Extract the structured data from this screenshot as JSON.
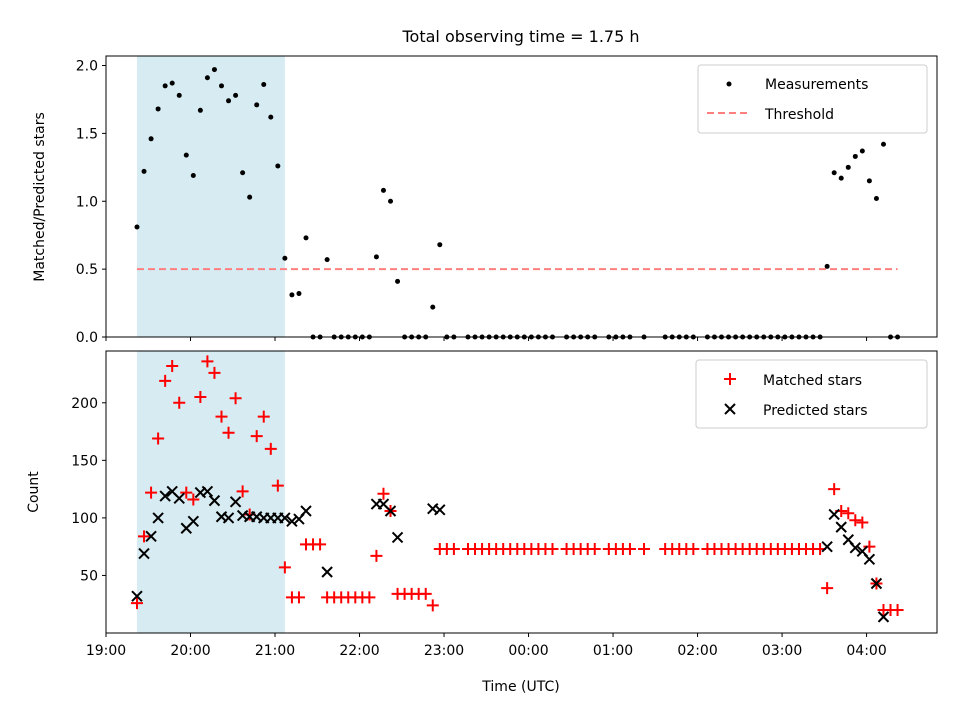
{
  "figure": {
    "title": "Total observing time = 1.75 h"
  },
  "chart_data": [
    {
      "type": "scatter",
      "panel": "top",
      "title": "Total observing time = 1.75 h",
      "xlabel": "",
      "ylabel": "Matched/Predicted stars",
      "xlim": [
        "19:00",
        "04:50"
      ],
      "ylim": [
        0,
        2.07
      ],
      "yticks": [
        "0.0",
        "0.5",
        "1.0",
        "1.5",
        "2.0"
      ],
      "legend_position": "upper-right",
      "shaded_interval": {
        "start": "19:22",
        "end": "21:07",
        "color": "#add8e6"
      },
      "series": [
        {
          "name": "Measurements",
          "marker": "dot",
          "color": "#000000",
          "points": [
            [
              "19:22",
              0.81
            ],
            [
              "19:27",
              1.22
            ],
            [
              "19:32",
              1.46
            ],
            [
              "19:37",
              1.68
            ],
            [
              "19:42",
              1.85
            ],
            [
              "19:47",
              1.87
            ],
            [
              "19:52",
              1.78
            ],
            [
              "19:57",
              1.34
            ],
            [
              "20:02",
              1.19
            ],
            [
              "20:07",
              1.67
            ],
            [
              "20:12",
              1.91
            ],
            [
              "20:17",
              1.97
            ],
            [
              "20:22",
              1.85
            ],
            [
              "20:27",
              1.74
            ],
            [
              "20:32",
              1.78
            ],
            [
              "20:37",
              1.21
            ],
            [
              "20:42",
              1.03
            ],
            [
              "20:47",
              1.71
            ],
            [
              "20:52",
              1.86
            ],
            [
              "20:57",
              1.62
            ],
            [
              "21:02",
              1.26
            ],
            [
              "21:07",
              0.58
            ],
            [
              "21:12",
              0.31
            ],
            [
              "21:17",
              0.32
            ],
            [
              "21:22",
              0.73
            ],
            [
              "21:27",
              0
            ],
            [
              "21:32",
              0
            ],
            [
              "21:37",
              0.57
            ],
            [
              "21:42",
              0
            ],
            [
              "21:47",
              0
            ],
            [
              "21:52",
              0
            ],
            [
              "21:57",
              0
            ],
            [
              "22:02",
              0
            ],
            [
              "22:07",
              0
            ],
            [
              "22:12",
              0.59
            ],
            [
              "22:17",
              1.08
            ],
            [
              "22:22",
              1.0
            ],
            [
              "22:27",
              0.41
            ],
            [
              "22:32",
              0
            ],
            [
              "22:37",
              0
            ],
            [
              "22:42",
              0
            ],
            [
              "22:47",
              0
            ],
            [
              "22:52",
              0.22
            ],
            [
              "22:57",
              0.68
            ],
            [
              "23:02",
              0
            ],
            [
              "23:07",
              0
            ],
            [
              "23:17",
              0
            ],
            [
              "23:22",
              0
            ],
            [
              "23:27",
              0
            ],
            [
              "23:32",
              0
            ],
            [
              "23:37",
              0
            ],
            [
              "23:42",
              0
            ],
            [
              "23:47",
              0
            ],
            [
              "23:52",
              0
            ],
            [
              "23:57",
              0
            ],
            [
              "00:02",
              0
            ],
            [
              "00:07",
              0
            ],
            [
              "00:12",
              0
            ],
            [
              "00:17",
              0
            ],
            [
              "00:27",
              0
            ],
            [
              "00:32",
              0
            ],
            [
              "00:37",
              0
            ],
            [
              "00:42",
              0
            ],
            [
              "00:47",
              0
            ],
            [
              "00:57",
              0
            ],
            [
              "01:02",
              0
            ],
            [
              "01:07",
              0
            ],
            [
              "01:12",
              0
            ],
            [
              "01:22",
              0
            ],
            [
              "01:37",
              0
            ],
            [
              "01:42",
              0
            ],
            [
              "01:47",
              0
            ],
            [
              "01:52",
              0
            ],
            [
              "01:57",
              0
            ],
            [
              "02:07",
              0
            ],
            [
              "02:12",
              0
            ],
            [
              "02:17",
              0
            ],
            [
              "02:22",
              0
            ],
            [
              "02:27",
              0
            ],
            [
              "02:32",
              0
            ],
            [
              "02:37",
              0
            ],
            [
              "02:42",
              0
            ],
            [
              "02:47",
              0
            ],
            [
              "02:52",
              0
            ],
            [
              "02:57",
              0
            ],
            [
              "03:02",
              0
            ],
            [
              "03:07",
              0
            ],
            [
              "03:12",
              0
            ],
            [
              "03:17",
              0
            ],
            [
              "03:22",
              0
            ],
            [
              "03:27",
              0
            ],
            [
              "03:32",
              0.52
            ],
            [
              "03:37",
              1.21
            ],
            [
              "03:42",
              1.17
            ],
            [
              "03:47",
              1.25
            ],
            [
              "03:52",
              1.33
            ],
            [
              "03:57",
              1.37
            ],
            [
              "04:02",
              1.15
            ],
            [
              "04:07",
              1.02
            ],
            [
              "04:12",
              1.42
            ],
            [
              "04:17",
              0
            ],
            [
              "04:22",
              0
            ]
          ]
        },
        {
          "name": "Threshold",
          "marker": "dashed-line",
          "color": "#ff7f7f",
          "x": [
            "19:22",
            "04:22"
          ],
          "y": [
            0.5,
            0.5
          ]
        }
      ]
    },
    {
      "type": "scatter",
      "panel": "bottom",
      "xlabel": "Time (UTC)",
      "ylabel": "Count",
      "xlim": [
        "19:00",
        "04:50"
      ],
      "ylim": [
        0,
        245
      ],
      "yticks": [
        "50",
        "100",
        "150",
        "200"
      ],
      "xticks": [
        "19:00",
        "20:00",
        "21:00",
        "22:00",
        "23:00",
        "00:00",
        "01:00",
        "02:00",
        "03:00",
        "04:00"
      ],
      "legend_position": "upper-right",
      "shaded_interval": {
        "start": "19:22",
        "end": "21:07",
        "color": "#add8e6"
      },
      "series": [
        {
          "name": "Matched stars",
          "marker": "plus",
          "color": "#ff0000",
          "points": [
            [
              "19:22",
              26
            ],
            [
              "19:27",
              84
            ],
            [
              "19:32",
              122
            ],
            [
              "19:37",
              169
            ],
            [
              "19:42",
              219
            ],
            [
              "19:47",
              232
            ],
            [
              "19:52",
              200
            ],
            [
              "19:57",
              122
            ],
            [
              "20:02",
              116
            ],
            [
              "20:07",
              205
            ],
            [
              "20:12",
              236
            ],
            [
              "20:17",
              226
            ],
            [
              "20:22",
              188
            ],
            [
              "20:27",
              174
            ],
            [
              "20:32",
              204
            ],
            [
              "20:37",
              123
            ],
            [
              "20:42",
              103
            ],
            [
              "20:47",
              171
            ],
            [
              "20:52",
              188
            ],
            [
              "20:57",
              160
            ],
            [
              "21:02",
              128
            ],
            [
              "21:07",
              57
            ],
            [
              "21:12",
              31
            ],
            [
              "21:17",
              31
            ],
            [
              "21:22",
              77
            ],
            [
              "21:27",
              77
            ],
            [
              "21:32",
              77
            ],
            [
              "21:37",
              31
            ],
            [
              "21:42",
              31
            ],
            [
              "21:47",
              31
            ],
            [
              "21:52",
              31
            ],
            [
              "21:57",
              31
            ],
            [
              "22:02",
              31
            ],
            [
              "22:07",
              31
            ],
            [
              "22:12",
              67
            ],
            [
              "22:17",
              121
            ],
            [
              "22:22",
              106
            ],
            [
              "22:27",
              34
            ],
            [
              "22:32",
              34
            ],
            [
              "22:37",
              34
            ],
            [
              "22:42",
              34
            ],
            [
              "22:47",
              34
            ],
            [
              "22:52",
              24
            ],
            [
              "22:57",
              73
            ],
            [
              "23:02",
              73
            ],
            [
              "23:07",
              73
            ],
            [
              "23:17",
              73
            ],
            [
              "23:22",
              73
            ],
            [
              "23:27",
              73
            ],
            [
              "23:32",
              73
            ],
            [
              "23:37",
              73
            ],
            [
              "23:42",
              73
            ],
            [
              "23:47",
              73
            ],
            [
              "23:52",
              73
            ],
            [
              "23:57",
              73
            ],
            [
              "00:02",
              73
            ],
            [
              "00:07",
              73
            ],
            [
              "00:12",
              73
            ],
            [
              "00:17",
              73
            ],
            [
              "00:27",
              73
            ],
            [
              "00:32",
              73
            ],
            [
              "00:37",
              73
            ],
            [
              "00:42",
              73
            ],
            [
              "00:47",
              73
            ],
            [
              "00:57",
              73
            ],
            [
              "01:02",
              73
            ],
            [
              "01:07",
              73
            ],
            [
              "01:12",
              73
            ],
            [
              "01:22",
              73
            ],
            [
              "01:37",
              73
            ],
            [
              "01:42",
              73
            ],
            [
              "01:47",
              73
            ],
            [
              "01:52",
              73
            ],
            [
              "01:57",
              73
            ],
            [
              "02:07",
              73
            ],
            [
              "02:12",
              73
            ],
            [
              "02:17",
              73
            ],
            [
              "02:22",
              73
            ],
            [
              "02:27",
              73
            ],
            [
              "02:32",
              73
            ],
            [
              "02:37",
              73
            ],
            [
              "02:42",
              73
            ],
            [
              "02:47",
              73
            ],
            [
              "02:52",
              73
            ],
            [
              "02:57",
              73
            ],
            [
              "03:02",
              73
            ],
            [
              "03:07",
              73
            ],
            [
              "03:12",
              73
            ],
            [
              "03:17",
              73
            ],
            [
              "03:22",
              73
            ],
            [
              "03:27",
              73
            ],
            [
              "03:32",
              39
            ],
            [
              "03:37",
              125
            ],
            [
              "03:42",
              106
            ],
            [
              "03:47",
              104
            ],
            [
              "03:52",
              98
            ],
            [
              "03:57",
              96
            ],
            [
              "04:02",
              75
            ],
            [
              "04:07",
              43
            ],
            [
              "04:12",
              20
            ],
            [
              "04:17",
              20
            ],
            [
              "04:22",
              20
            ]
          ]
        },
        {
          "name": "Predicted stars",
          "marker": "x",
          "color": "#000000",
          "points": [
            [
              "19:22",
              32
            ],
            [
              "19:27",
              69
            ],
            [
              "19:32",
              84
            ],
            [
              "19:37",
              100
            ],
            [
              "19:42",
              119
            ],
            [
              "19:47",
              123
            ],
            [
              "19:52",
              117
            ],
            [
              "19:57",
              91
            ],
            [
              "20:02",
              97
            ],
            [
              "20:07",
              122
            ],
            [
              "20:12",
              123
            ],
            [
              "20:17",
              115
            ],
            [
              "20:22",
              101
            ],
            [
              "20:27",
              100
            ],
            [
              "20:32",
              114
            ],
            [
              "20:37",
              102
            ],
            [
              "20:42",
              101
            ],
            [
              "20:47",
              101
            ],
            [
              "20:52",
              100
            ],
            [
              "20:57",
              100
            ],
            [
              "21:02",
              100
            ],
            [
              "21:07",
              100
            ],
            [
              "21:12",
              97
            ],
            [
              "21:17",
              99
            ],
            [
              "21:22",
              106
            ],
            [
              "21:37",
              53
            ],
            [
              "22:12",
              112
            ],
            [
              "22:17",
              112
            ],
            [
              "22:22",
              106
            ],
            [
              "22:27",
              83
            ],
            [
              "22:52",
              108
            ],
            [
              "22:57",
              107
            ],
            [
              "03:32",
              75
            ],
            [
              "03:37",
              103
            ],
            [
              "03:42",
              92
            ],
            [
              "03:47",
              81
            ],
            [
              "03:52",
              74
            ],
            [
              "03:57",
              71
            ],
            [
              "04:02",
              64
            ],
            [
              "04:07",
              43
            ],
            [
              "04:12",
              14
            ]
          ]
        }
      ]
    }
  ]
}
